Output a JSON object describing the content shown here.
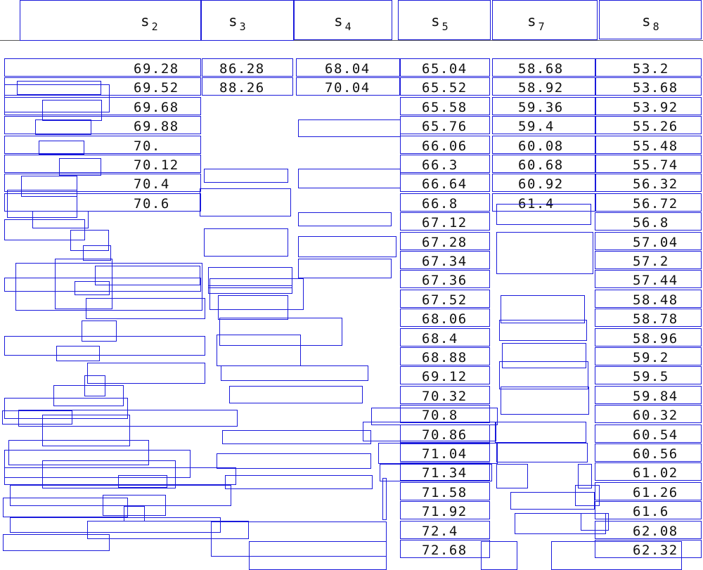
{
  "headers": [
    {
      "base": "s",
      "sub": "2"
    },
    {
      "base": "s",
      "sub": "3"
    },
    {
      "base": "s",
      "sub": "4"
    },
    {
      "base": "s",
      "sub": "5"
    },
    {
      "base": "s",
      "sub": "7"
    },
    {
      "base": "s",
      "sub": "8"
    }
  ],
  "columns": [
    [
      "69.28",
      "69.52",
      "69.68",
      "69.88",
      "70.",
      "70.12",
      "70.4",
      "70.6"
    ],
    [
      "86.28",
      "88.26"
    ],
    [
      "68.04",
      "70.04"
    ],
    [
      "65.04",
      "65.52",
      "65.58",
      "65.76",
      "66.06",
      "66.3",
      "66.64",
      "66.8",
      "67.12",
      "67.28",
      "67.34",
      "67.36",
      "67.52",
      "68.06",
      "68.4",
      "68.88",
      "69.12",
      "70.32",
      "70.8",
      "70.86",
      "71.04",
      "71.34",
      "71.58",
      "71.92",
      "72.4",
      "72.68"
    ],
    [
      "58.68",
      "58.92",
      "59.36",
      "59.4",
      "60.08",
      "60.68",
      "60.92",
      "61.4"
    ],
    [
      "53.2",
      "53.68",
      "53.92",
      "55.26",
      "55.48",
      "55.74",
      "56.32",
      "56.72",
      "56.8",
      "57.04",
      "57.2",
      "57.44",
      "58.48",
      "58.78",
      "58.96",
      "59.2",
      "59.5",
      "59.84",
      "60.32",
      "60.54",
      "60.56",
      "61.02",
      "61.26",
      "61.6",
      "62.08",
      "62.32"
    ]
  ],
  "colors": {
    "box_outline": "#1a1adb",
    "text": "#111111"
  }
}
